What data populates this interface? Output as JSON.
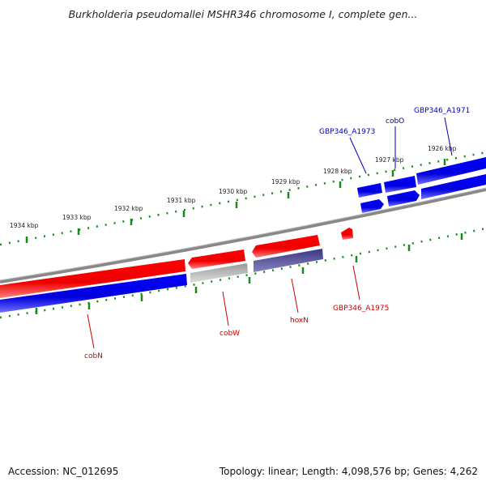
{
  "title": "Burkholderia pseudomallei MSHR346 chromosome I, complete gen...",
  "accession": "Accession: NC_012695",
  "summary": "Topology: linear; Length: 4,098,576 bp; Genes: 4,262",
  "kbp_labels": [
    "1926 kbp",
    "1927 kbp",
    "1928 kbp",
    "1929 kbp",
    "1930 kbp",
    "1931 kbp",
    "1932 kbp",
    "1933 kbp",
    "1934 kbp"
  ],
  "gene_labels": {
    "top": [
      "GBP346_A1971",
      "cobO",
      "GBP346_A1973"
    ],
    "bottom": [
      "cobN",
      "cobW",
      "hoxN",
      "GBP346_A1975"
    ]
  },
  "colors": {
    "forward": "#ff0000",
    "reverse": "#0000ee",
    "grey": "#aaaaaa",
    "purple": "#44408a",
    "tick": "#1a8a1a",
    "axis": "#888888"
  }
}
